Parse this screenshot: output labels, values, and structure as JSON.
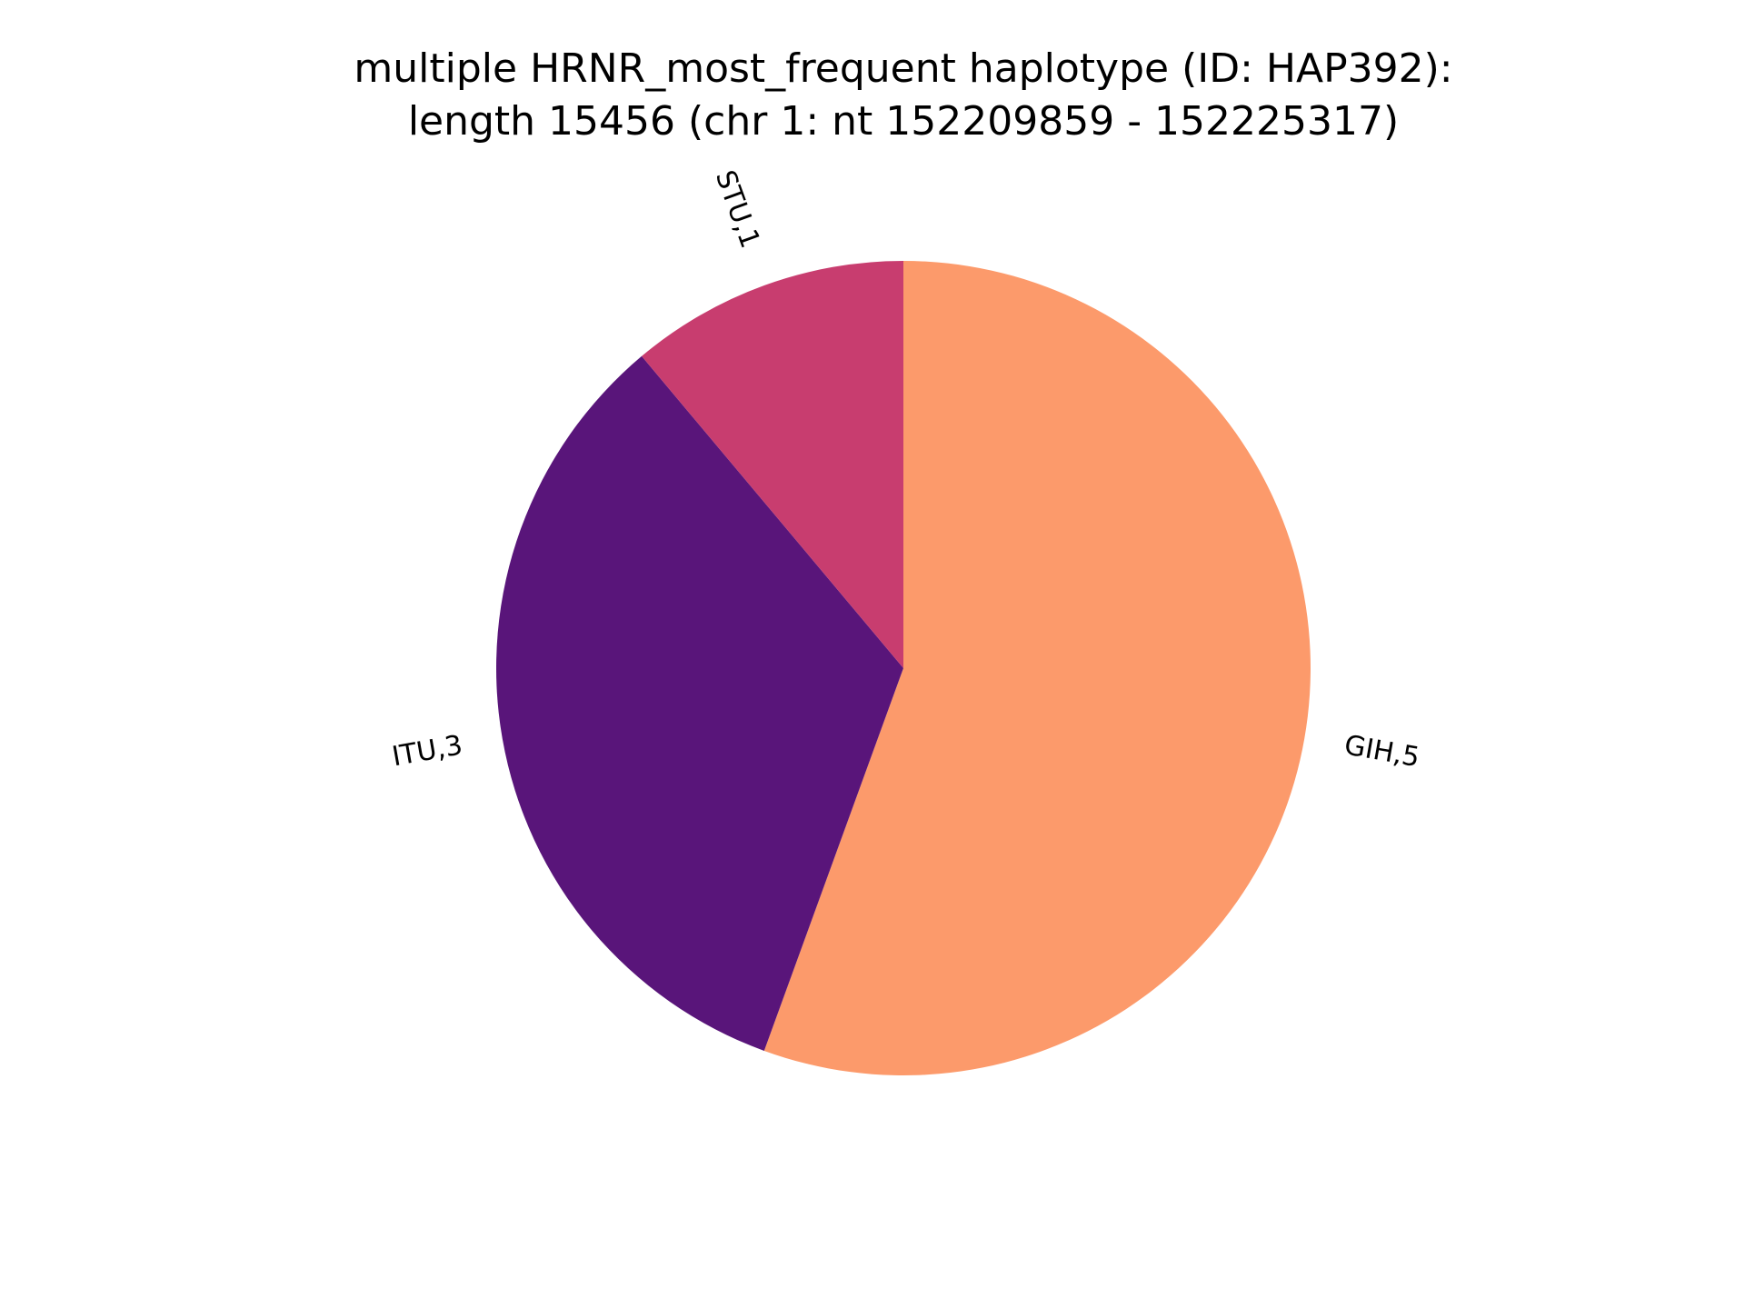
{
  "chart_data": {
    "type": "pie",
    "title_lines": [
      "multiple HRNR_most_frequent haplotype (ID: HAP392):",
      "length 15456 (chr 1: nt 152209859 - 152225317)"
    ],
    "slices": [
      {
        "label": "GIH,5",
        "category": "GIH",
        "value": 5,
        "color": "#fc9a6b"
      },
      {
        "label": "ITU,3",
        "category": "ITU",
        "value": 3,
        "color": "#59157a"
      },
      {
        "label": "STU,1",
        "category": "STU",
        "value": 1,
        "color": "#c83d6f"
      }
    ],
    "start_direction": "top",
    "direction": "clockwise",
    "labels_rotated": true,
    "legend": "none"
  }
}
